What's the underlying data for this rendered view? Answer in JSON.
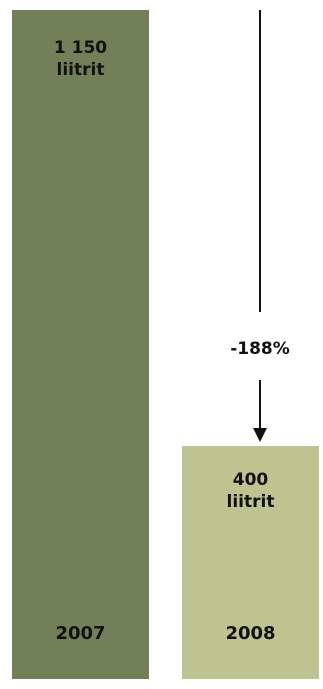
{
  "chart_data": {
    "type": "bar",
    "categories": [
      "2007",
      "2008"
    ],
    "values": [
      1150,
      400
    ],
    "value_labels": [
      {
        "number": "1 150",
        "unit": "liitrit"
      },
      {
        "number": "400",
        "unit": "liitrit"
      }
    ],
    "bar_colors": [
      "#728058",
      "#bec48f"
    ],
    "change_annotation": "-188%",
    "ylim": [
      0,
      1150
    ]
  }
}
